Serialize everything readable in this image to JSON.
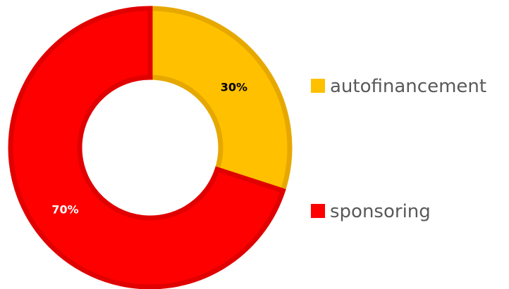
{
  "chart_data": {
    "type": "pie",
    "donut": true,
    "title": "",
    "legend_position": "right",
    "slices": [
      {
        "label": "autofinancement",
        "value": 30,
        "display": "30%",
        "color": "#FFC000",
        "border": "#E6A800",
        "label_color": "#000000"
      },
      {
        "label": "sponsoring",
        "value": 70,
        "display": "70%",
        "color": "#FF0000",
        "border": "#E00000",
        "label_color": "#FFFFFF"
      }
    ]
  }
}
